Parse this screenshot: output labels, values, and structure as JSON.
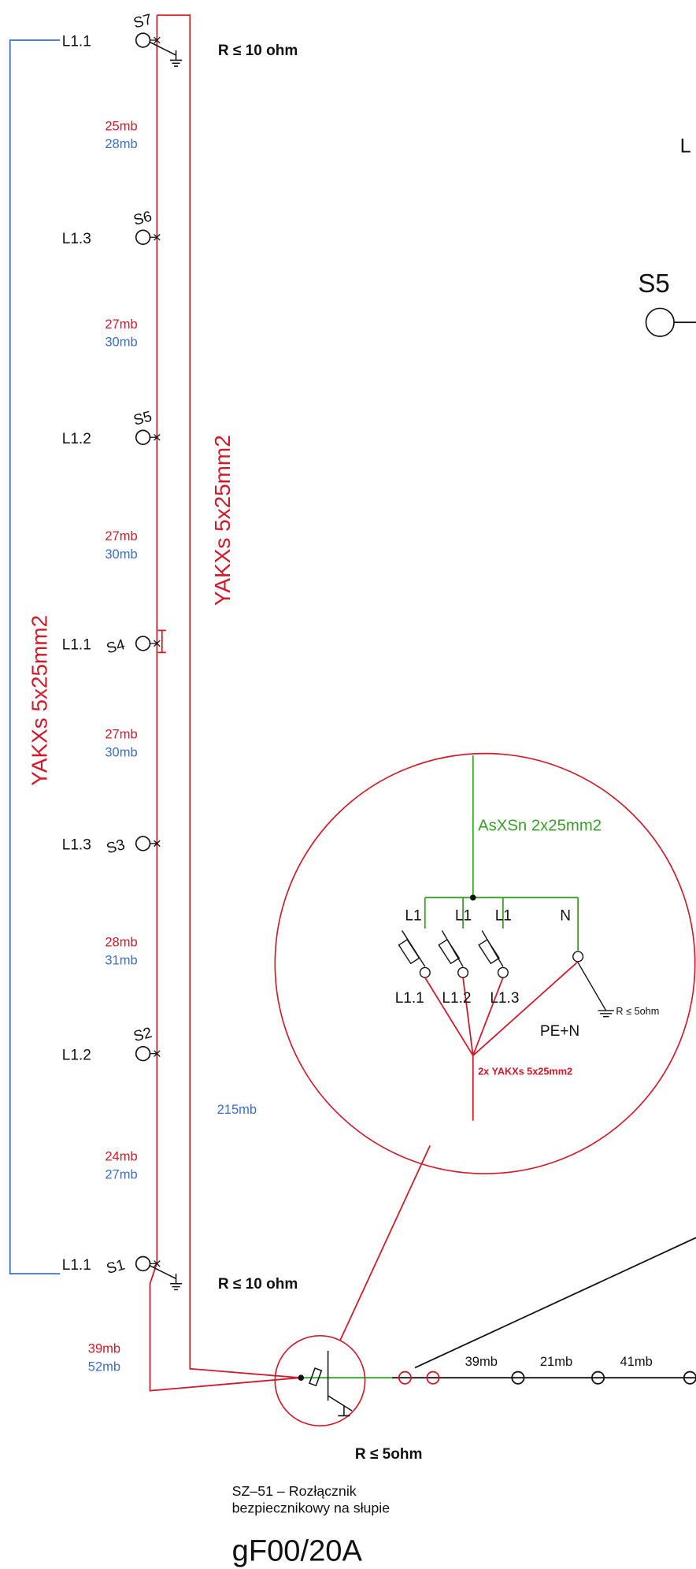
{
  "poles": [
    {
      "name": "S7",
      "phase": "L1.1"
    },
    {
      "name": "S6",
      "phase": "L1.3"
    },
    {
      "name": "S5",
      "phase": "L1.2"
    },
    {
      "name": "S4",
      "phase": "L1.1"
    },
    {
      "name": "S3",
      "phase": "L1.3"
    },
    {
      "name": "S2",
      "phase": "L1.2"
    },
    {
      "name": "S1",
      "phase": "L1.1"
    }
  ],
  "spans": [
    {
      "red": "25mb",
      "blue": "28mb"
    },
    {
      "red": "27mb",
      "blue": "30mb"
    },
    {
      "red": "27mb",
      "blue": "30mb"
    },
    {
      "red": "27mb",
      "blue": "30mb"
    },
    {
      "red": "28mb",
      "blue": "31mb"
    },
    {
      "red": "24mb",
      "blue": "27mb"
    },
    {
      "red": "39mb",
      "blue": "52mb"
    }
  ],
  "cables": {
    "left": "YAKXs 5x25mm2",
    "right": "YAKXs 5x25mm2"
  },
  "total": "215mb",
  "earthing": {
    "top": "R ≤ 10 ohm",
    "bottom": "R ≤ 10 ohm",
    "switch": "R ≤ 5ohm"
  },
  "detail": {
    "supply": "AsXSn 2x25mm2",
    "busbar": [
      "L1",
      "L1",
      "L1",
      "N"
    ],
    "outputs": [
      "L1.1",
      "L1.2",
      "L1.3"
    ],
    "pe": "PE+N",
    "earth": "R ≤ 5ohm",
    "cable": "2x YAKXs 5x25mm2"
  },
  "line": {
    "spans": [
      "39mb",
      "21mb",
      "41mb"
    ]
  },
  "caption": {
    "line1": "SZ–51 – Rozłącznik",
    "line2": "bezpiecznikowy na słupie",
    "fuse": "gF00/20A"
  },
  "edge": {
    "label": "L",
    "pole": "S5"
  }
}
